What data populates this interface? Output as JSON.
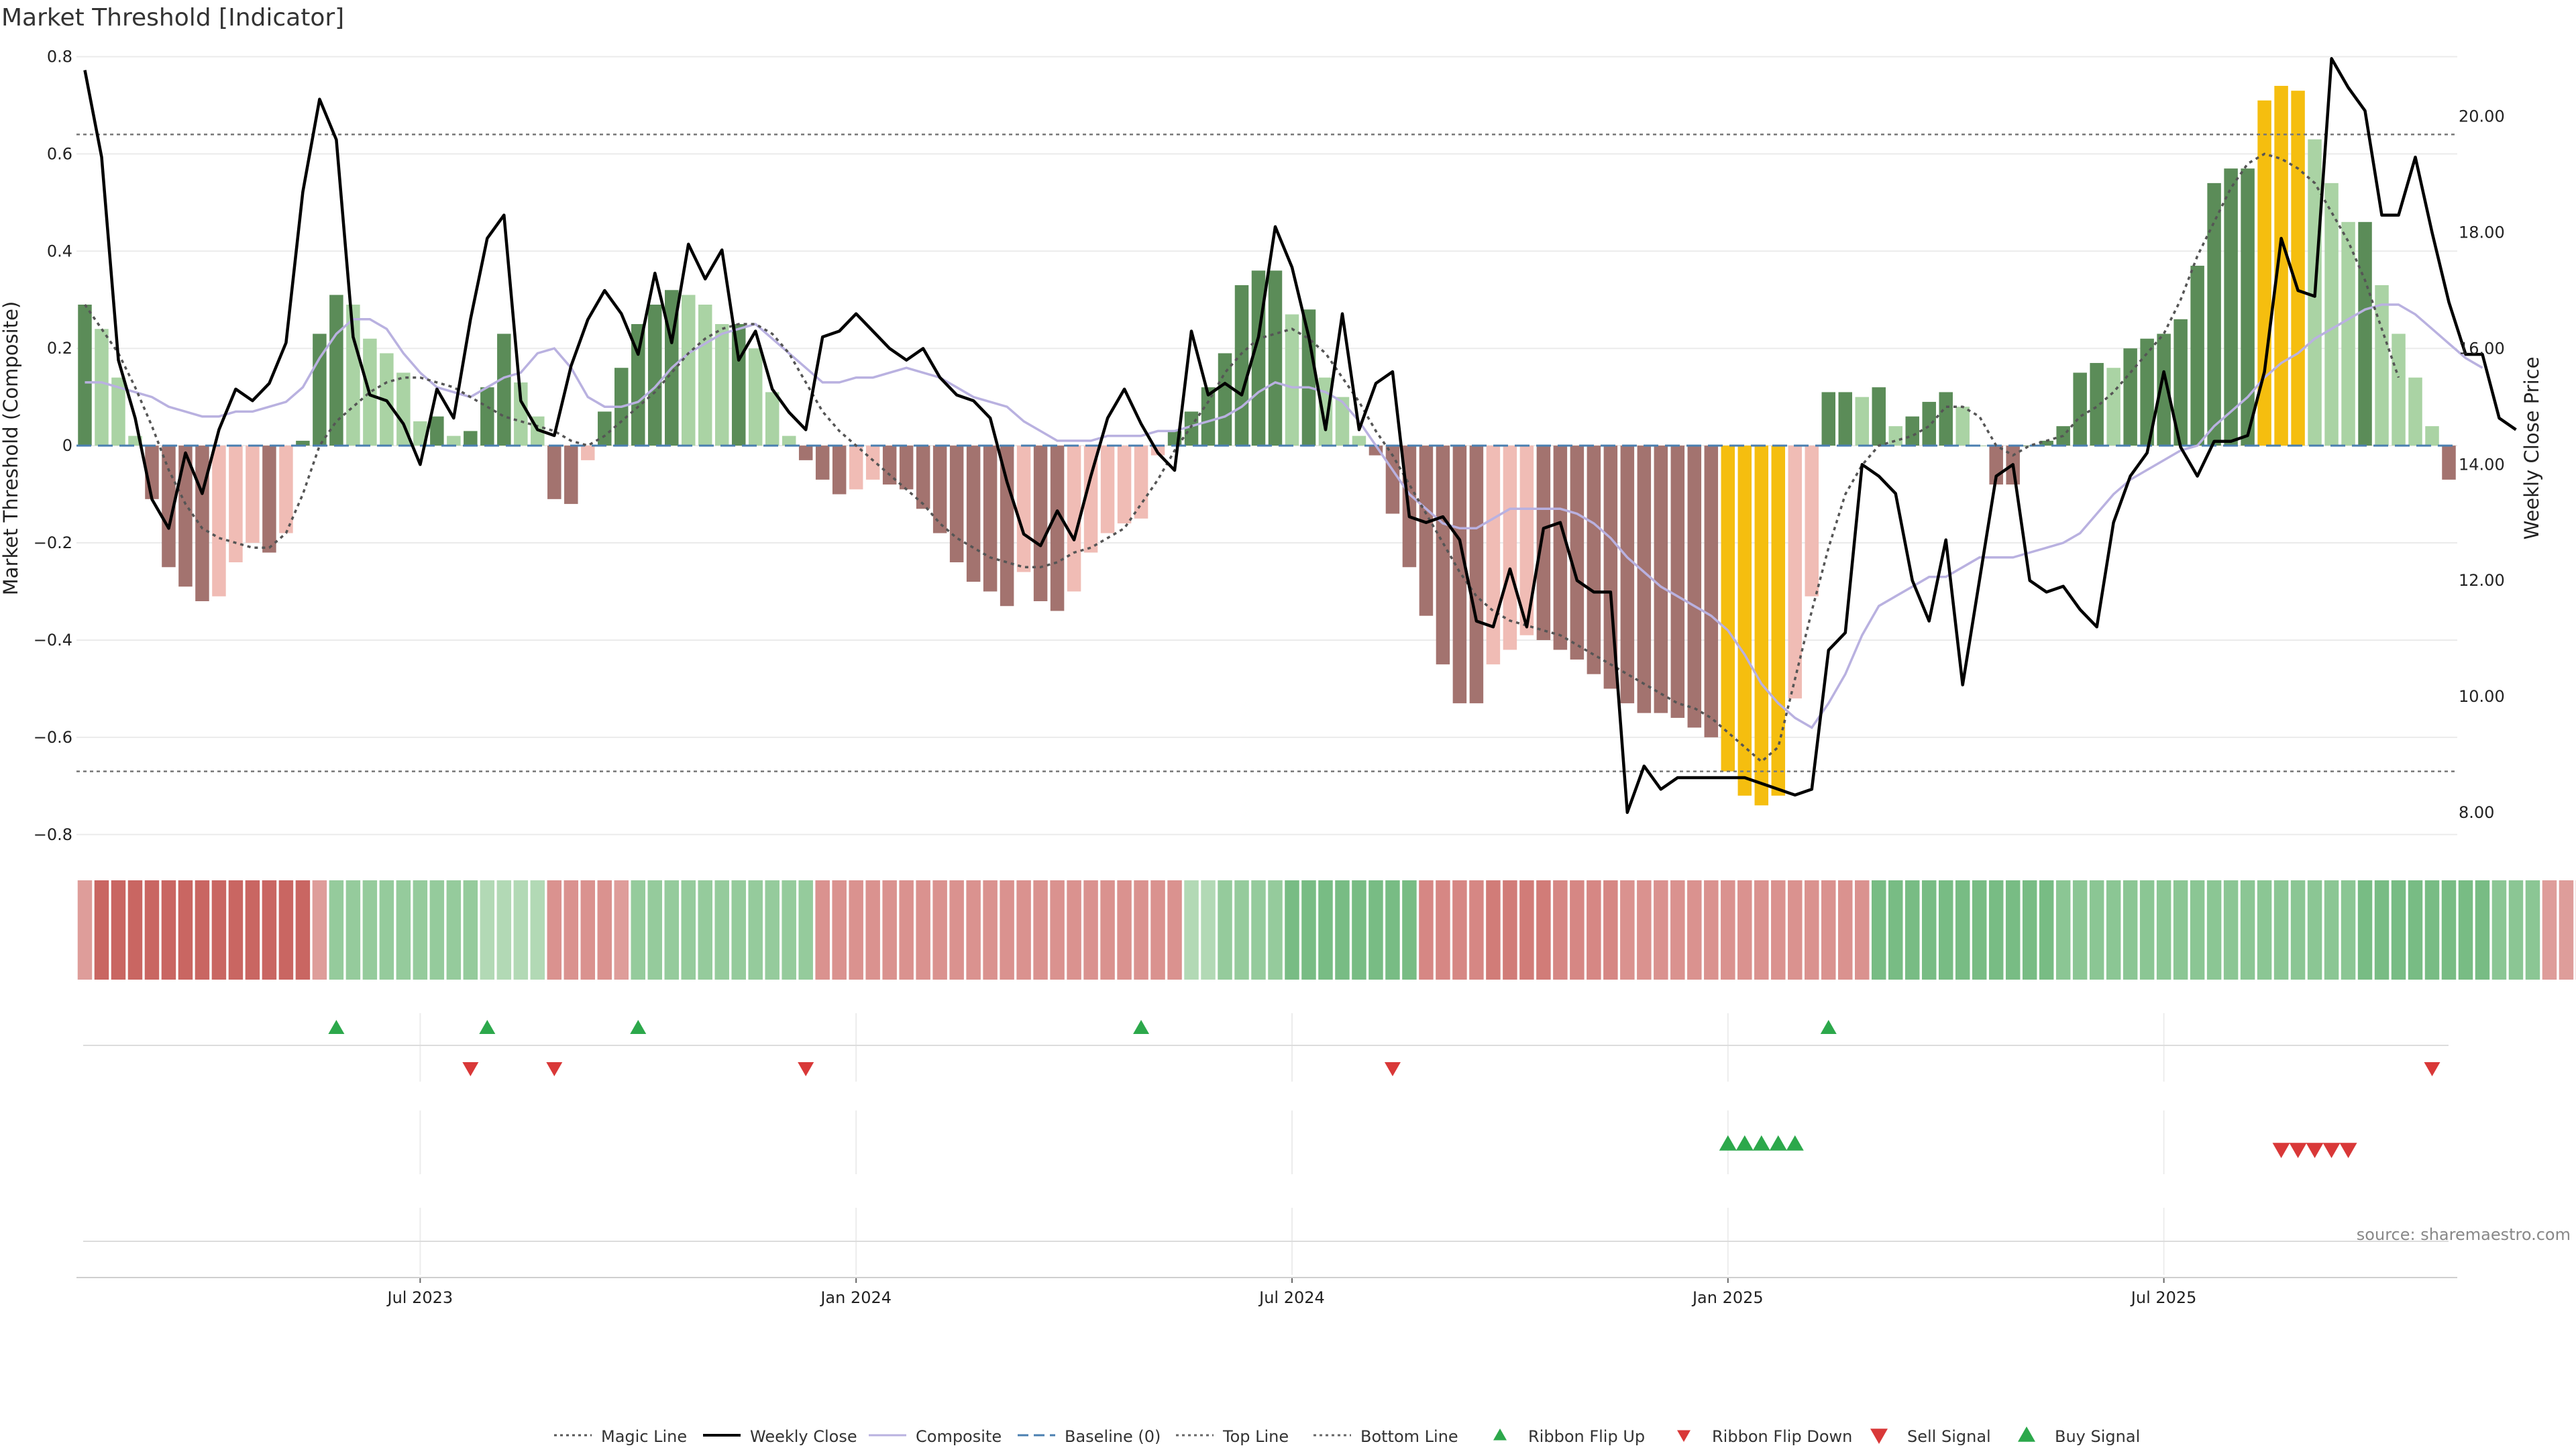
{
  "chart_data": {
    "type": "bar",
    "title": "Market Threshold [Indicator]",
    "source": "source: sharemaestro.com",
    "ylabel_left": "Market Threshold (Composite)",
    "ylabel_right": "Weekly Close Price",
    "ylim_left": [
      -0.85,
      0.82
    ],
    "ylim_right": [
      7.2,
      21.2
    ],
    "yticks_left": [
      "0.8",
      "0.6",
      "0.4",
      "0.2",
      "0",
      "−0.2",
      "−0.4",
      "−0.6",
      "−0.8"
    ],
    "yticks_left_values": [
      0.8,
      0.6,
      0.4,
      0.2,
      0,
      -0.2,
      -0.4,
      -0.6,
      -0.8
    ],
    "yticks_right": [
      "20.00",
      "18.00",
      "16.00",
      "14.00",
      "12.00",
      "10.00",
      "8.00"
    ],
    "yticks_right_values": [
      20,
      18,
      16,
      14,
      12,
      10,
      8
    ],
    "xticks": [
      {
        "label": "Jul 2023",
        "week": 20
      },
      {
        "label": "Jan 2024",
        "week": 46
      },
      {
        "label": "Jul 2024",
        "week": 72
      },
      {
        "label": "Jan 2025",
        "week": 98
      },
      {
        "label": "Jul 2025",
        "week": 124
      }
    ],
    "x_start": "2023-02",
    "x_end": "2025-10",
    "top_line": 0.64,
    "bottom_line": -0.67,
    "baseline": 0,
    "grid": true,
    "legend_position": "bottom-center",
    "colors": {
      "pos_dark": "#5b8c58",
      "pos_light": "#aad3a4",
      "neg_dark": "#a3736f",
      "neg_light": "#f0bcb5",
      "extreme": "#f5be0f",
      "close": "#000000",
      "composite": "#b9b1e0",
      "magic": "#555555",
      "baseline": "#4a7fb0",
      "buy": "#2ca84b",
      "sell": "#d93838"
    },
    "composite_bars": [
      0.29,
      0.24,
      0.14,
      0.02,
      -0.11,
      -0.25,
      -0.29,
      -0.32,
      -0.31,
      -0.24,
      -0.2,
      -0.22,
      -0.18,
      0.01,
      0.23,
      0.31,
      0.29,
      0.22,
      0.19,
      0.15,
      0.05,
      0.06,
      0.02,
      0.03,
      0.12,
      0.23,
      0.13,
      0.06,
      -0.11,
      -0.12,
      -0.03,
      0.07,
      0.16,
      0.25,
      0.29,
      0.32,
      0.31,
      0.29,
      0.25,
      0.25,
      0.2,
      0.11,
      0.02,
      -0.03,
      -0.07,
      -0.1,
      -0.09,
      -0.07,
      -0.08,
      -0.09,
      -0.13,
      -0.18,
      -0.24,
      -0.28,
      -0.3,
      -0.33,
      -0.26,
      -0.32,
      -0.34,
      -0.3,
      -0.22,
      -0.18,
      -0.16,
      -0.15,
      -0.02,
      0.03,
      0.07,
      0.12,
      0.19,
      0.33,
      0.36,
      0.36,
      0.27,
      0.28,
      0.14,
      0.1,
      0.02,
      -0.02,
      -0.14,
      -0.25,
      -0.35,
      -0.45,
      -0.53,
      -0.53,
      -0.45,
      -0.42,
      -0.39,
      -0.4,
      -0.42,
      -0.44,
      -0.47,
      -0.5,
      -0.53,
      -0.55,
      -0.55,
      -0.56,
      -0.58,
      -0.6,
      -0.67,
      -0.72,
      -0.74,
      -0.72,
      -0.52,
      -0.31,
      0.11,
      0.11,
      0.1,
      0.12,
      0.04,
      0.06,
      0.09,
      0.11,
      0.08,
      0.0,
      -0.08,
      -0.08,
      0.0,
      0.01,
      0.04,
      0.15,
      0.17,
      0.16,
      0.2,
      0.22,
      0.23,
      0.26,
      0.37,
      0.54,
      0.57,
      0.57,
      0.71,
      0.74,
      0.73,
      0.63,
      0.54,
      0.46,
      0.46,
      0.33,
      0.23,
      0.14,
      0.04,
      -0.07
    ],
    "weekly_close": [
      20.8,
      19.3,
      15.8,
      14.8,
      13.4,
      12.9,
      14.2,
      13.5,
      14.6,
      15.3,
      15.1,
      15.4,
      16.1,
      18.7,
      20.3,
      19.6,
      16.2,
      15.2,
      15.1,
      14.7,
      14.0,
      15.3,
      14.8,
      16.5,
      17.9,
      18.3,
      15.1,
      14.6,
      14.5,
      15.7,
      16.5,
      17.0,
      16.6,
      15.9,
      17.3,
      16.1,
      17.8,
      17.2,
      17.7,
      15.8,
      16.3,
      15.3,
      14.9,
      14.6,
      16.2,
      16.3,
      16.6,
      16.3,
      16.0,
      15.8,
      16.0,
      15.5,
      15.2,
      15.1,
      14.8,
      13.7,
      12.8,
      12.6,
      13.2,
      12.7,
      13.8,
      14.8,
      15.3,
      14.7,
      14.2,
      13.9,
      16.3,
      15.2,
      15.4,
      15.2,
      16.2,
      18.1,
      17.4,
      16.2,
      14.6,
      16.6,
      14.6,
      15.4,
      15.6,
      13.1,
      13.0,
      13.1,
      12.7,
      11.3,
      11.2,
      12.2,
      11.2,
      12.9,
      13.0,
      12.0,
      11.8,
      11.8,
      8.0,
      8.8,
      8.4,
      8.6,
      8.6,
      8.6,
      8.6,
      8.6,
      8.5,
      8.4,
      8.3,
      8.4,
      10.8,
      11.1,
      14.0,
      13.8,
      13.5,
      12.0,
      11.3,
      12.7,
      10.2,
      12.0,
      13.8,
      14.0,
      12.0,
      11.8,
      11.9,
      11.5,
      11.2,
      13.0,
      13.8,
      14.2,
      15.6,
      14.3,
      13.8,
      14.4,
      14.4,
      14.5,
      15.6,
      17.9,
      17.0,
      16.9,
      21.0,
      20.5,
      20.1,
      18.3,
      18.3,
      19.3,
      18.0,
      16.8,
      15.9,
      15.9,
      14.8,
      14.6
    ],
    "composite_line": [
      0.13,
      0.13,
      0.12,
      0.11,
      0.1,
      0.08,
      0.07,
      0.06,
      0.06,
      0.07,
      0.07,
      0.08,
      0.09,
      0.12,
      0.18,
      0.23,
      0.26,
      0.26,
      0.24,
      0.19,
      0.15,
      0.12,
      0.11,
      0.1,
      0.12,
      0.14,
      0.15,
      0.19,
      0.2,
      0.16,
      0.1,
      0.08,
      0.08,
      0.09,
      0.12,
      0.16,
      0.19,
      0.21,
      0.23,
      0.24,
      0.25,
      0.22,
      0.19,
      0.16,
      0.13,
      0.13,
      0.14,
      0.14,
      0.15,
      0.16,
      0.15,
      0.14,
      0.12,
      0.1,
      0.09,
      0.08,
      0.05,
      0.03,
      0.01,
      0.01,
      0.01,
      0.02,
      0.02,
      0.02,
      0.03,
      0.03,
      0.04,
      0.05,
      0.06,
      0.08,
      0.11,
      0.13,
      0.12,
      0.12,
      0.11,
      0.09,
      0.05,
      0.0,
      -0.05,
      -0.1,
      -0.13,
      -0.16,
      -0.17,
      -0.17,
      -0.15,
      -0.13,
      -0.13,
      -0.13,
      -0.13,
      -0.14,
      -0.16,
      -0.19,
      -0.23,
      -0.26,
      -0.29,
      -0.31,
      -0.33,
      -0.35,
      -0.38,
      -0.43,
      -0.49,
      -0.53,
      -0.56,
      -0.58,
      -0.53,
      -0.47,
      -0.39,
      -0.33,
      -0.31,
      -0.29,
      -0.27,
      -0.27,
      -0.25,
      -0.23,
      -0.23,
      -0.23,
      -0.22,
      -0.21,
      -0.2,
      -0.18,
      -0.14,
      -0.1,
      -0.07,
      -0.05,
      -0.03,
      -0.01,
      0.0,
      0.04,
      0.07,
      0.1,
      0.14,
      0.17,
      0.19,
      0.22,
      0.24,
      0.26,
      0.28,
      0.29,
      0.29,
      0.27,
      0.24,
      0.21,
      0.18,
      0.16
    ],
    "magic_line": [
      0.29,
      0.24,
      0.19,
      0.12,
      0.04,
      -0.05,
      -0.12,
      -0.17,
      -0.19,
      -0.2,
      -0.21,
      -0.21,
      -0.18,
      -0.1,
      0.0,
      0.05,
      0.08,
      0.11,
      0.13,
      0.14,
      0.14,
      0.13,
      0.12,
      0.1,
      0.08,
      0.06,
      0.05,
      0.04,
      0.03,
      0.01,
      0.0,
      0.02,
      0.05,
      0.08,
      0.11,
      0.15,
      0.19,
      0.22,
      0.24,
      0.25,
      0.25,
      0.23,
      0.19,
      0.13,
      0.07,
      0.03,
      0.0,
      -0.03,
      -0.06,
      -0.09,
      -0.12,
      -0.16,
      -0.19,
      -0.21,
      -0.23,
      -0.24,
      -0.25,
      -0.25,
      -0.24,
      -0.22,
      -0.21,
      -0.19,
      -0.17,
      -0.12,
      -0.07,
      -0.01,
      0.04,
      0.09,
      0.15,
      0.19,
      0.22,
      0.23,
      0.24,
      0.22,
      0.19,
      0.14,
      0.09,
      0.03,
      -0.02,
      -0.08,
      -0.14,
      -0.2,
      -0.26,
      -0.31,
      -0.34,
      -0.36,
      -0.37,
      -0.38,
      -0.39,
      -0.41,
      -0.43,
      -0.45,
      -0.47,
      -0.49,
      -0.51,
      -0.53,
      -0.54,
      -0.56,
      -0.59,
      -0.62,
      -0.65,
      -0.62,
      -0.48,
      -0.34,
      -0.21,
      -0.1,
      -0.04,
      0.0,
      0.01,
      0.02,
      0.04,
      0.08,
      0.08,
      0.06,
      0.0,
      -0.02,
      0.0,
      0.01,
      0.02,
      0.06,
      0.08,
      0.11,
      0.15,
      0.19,
      0.23,
      0.3,
      0.39,
      0.46,
      0.53,
      0.58,
      0.6,
      0.59,
      0.57,
      0.54,
      0.48,
      0.42,
      0.34,
      0.24,
      0.14
    ],
    "ribbon": [
      -0.5,
      -1,
      -1,
      -1,
      -1,
      -1,
      -1,
      -1,
      -1,
      -1,
      -1,
      -1,
      -1,
      -1,
      -0.5,
      0.7,
      0.7,
      0.7,
      0.7,
      0.7,
      0.7,
      0.7,
      0.7,
      0.7,
      0.4,
      0.4,
      0.4,
      0.4,
      -0.6,
      -0.6,
      -0.6,
      -0.6,
      -0.5,
      0.7,
      0.7,
      0.7,
      0.7,
      0.7,
      0.7,
      0.7,
      0.7,
      0.7,
      0.7,
      0.7,
      -0.6,
      -0.6,
      -0.6,
      -0.6,
      -0.6,
      -0.6,
      -0.6,
      -0.6,
      -0.6,
      -0.6,
      -0.6,
      -0.6,
      -0.6,
      -0.6,
      -0.6,
      -0.6,
      -0.6,
      -0.6,
      -0.6,
      -0.6,
      -0.6,
      -0.6,
      0.4,
      0.4,
      0.7,
      0.7,
      0.7,
      0.7,
      1,
      1,
      1,
      1,
      1,
      1,
      1,
      1,
      -0.7,
      -0.7,
      -0.7,
      -0.7,
      -0.8,
      -0.8,
      -0.8,
      -0.8,
      -0.7,
      -0.7,
      -0.7,
      -0.7,
      -0.6,
      -0.6,
      -0.6,
      -0.6,
      -0.6,
      -0.6,
      -0.6,
      -0.6,
      -0.6,
      -0.6,
      -0.6,
      -0.6,
      -0.6,
      -0.6,
      -0.6,
      1,
      1,
      1,
      1,
      1,
      1,
      1,
      1,
      1,
      1,
      1,
      0.8,
      0.8,
      0.8,
      0.8,
      0.8,
      0.8,
      0.8,
      0.8,
      0.8,
      0.8,
      0.8,
      0.8,
      0.8,
      0.8,
      0.8,
      0.8,
      0.8,
      0.8,
      1,
      1,
      1,
      1,
      1,
      1,
      1,
      1,
      0.8,
      0.8,
      0.8,
      -0.5,
      -0.5,
      -0.7,
      -0.7
    ],
    "ribbon_flip_up": [
      15,
      24,
      33,
      63,
      104
    ],
    "ribbon_flip_down": [
      23,
      28,
      43,
      78,
      140
    ],
    "buy_signal": [
      98,
      99,
      100,
      101,
      102
    ],
    "sell_signal": [
      131,
      132,
      133,
      134,
      135
    ],
    "legend": [
      {
        "key": "magic",
        "label": "Magic Line",
        "style": "dotted"
      },
      {
        "key": "close",
        "label": "Weekly Close",
        "style": "solid"
      },
      {
        "key": "composite",
        "label": "Composite",
        "style": "solid"
      },
      {
        "key": "baseline",
        "label": "Baseline (0)",
        "style": "dashed"
      },
      {
        "key": "top",
        "label": "Top Line",
        "style": "dotted"
      },
      {
        "key": "bottom",
        "label": "Bottom Line",
        "style": "dotted"
      },
      {
        "key": "flipup",
        "label": "Ribbon Flip Up",
        "style": "tri-up"
      },
      {
        "key": "flipdown",
        "label": "Ribbon Flip Down",
        "style": "tri-down"
      },
      {
        "key": "sell",
        "label": "Sell Signal",
        "style": "tri-down"
      },
      {
        "key": "buy",
        "label": "Buy Signal",
        "style": "tri-up"
      }
    ]
  }
}
